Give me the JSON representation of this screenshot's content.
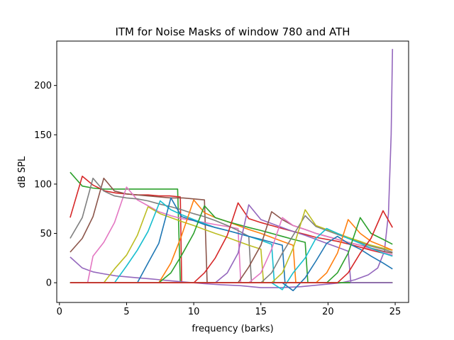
{
  "chart_data": {
    "type": "line",
    "title": "ITM for Noise Masks of window 780 and ATH",
    "xlabel": "frequency (barks)",
    "ylabel": "dB SPL",
    "xlim": [
      -0.2,
      26.0
    ],
    "ylim": [
      -20,
      245
    ],
    "xticks": [
      0,
      5,
      10,
      15,
      20,
      25
    ],
    "yticks": [
      0,
      50,
      100,
      150,
      200
    ],
    "xtick_labels": [
      "0",
      "5",
      "10",
      "15",
      "20",
      "25"
    ],
    "ytick_labels": [
      "0",
      "50",
      "100",
      "150",
      "200"
    ],
    "grid": false,
    "legend": "none",
    "series": [
      {
        "color": "#ff7f0e",
        "x": [
          0.8,
          24.8
        ],
        "y": [
          0,
          0
        ]
      },
      {
        "color": "#2ca02c",
        "x": [
          0.8,
          1.7,
          2.5,
          3.3,
          4.1,
          5.0,
          5.8,
          6.6,
          7.4,
          8.2,
          8.8,
          9.0,
          24.8
        ],
        "y": [
          112,
          98,
          96,
          95,
          95,
          95,
          95,
          95,
          95,
          95,
          95,
          0,
          0
        ]
      },
      {
        "color": "#d62728",
        "x": [
          0.8,
          1.7,
          2.5,
          3.4,
          4.2,
          5.0,
          5.8,
          6.6,
          7.4,
          8.2,
          9.0,
          9.1,
          24.8
        ],
        "y": [
          66,
          108,
          99,
          93,
          91,
          90,
          89,
          89,
          88,
          88,
          87,
          0,
          0
        ]
      },
      {
        "color": "#9467bd",
        "x": [
          0.8,
          1.7,
          2.5,
          3.3,
          4.2,
          5.0,
          5.8,
          6.7,
          7.5,
          8.3,
          9.1,
          10.0,
          10.8,
          12.0,
          13.5,
          15.0,
          16.5,
          18.0,
          19.5,
          21.0,
          22.0,
          23.0,
          23.7,
          24.2,
          24.5,
          24.7,
          24.8
        ],
        "y": [
          26,
          15,
          11,
          9,
          7,
          6,
          5,
          4,
          3,
          2,
          1,
          0,
          -1,
          -2,
          -3,
          -5,
          -5,
          -4,
          -2,
          0,
          3,
          8,
          15,
          32,
          70,
          150,
          237
        ]
      },
      {
        "color": "#8c564b",
        "x": [
          0.8,
          1.7,
          2.5,
          3.3,
          4.1,
          5.0,
          5.8,
          6.6,
          7.4,
          8.3,
          9.2,
          10.0,
          10.8,
          11.0,
          24.8
        ],
        "y": [
          31,
          45,
          67,
          106,
          93,
          90,
          89,
          88,
          87,
          86,
          86,
          85,
          84,
          0,
          0
        ]
      },
      {
        "color": "#e377c2",
        "x": [
          0.8,
          1.5,
          2.1,
          2.5,
          3.3,
          4.1,
          5.0,
          5.8,
          6.6,
          7.4,
          8.3,
          9.1,
          10.0,
          10.8,
          11.6,
          12.5,
          13.3,
          13.5,
          24.8
        ],
        "y": [
          0,
          0,
          0,
          27,
          41,
          61,
          97,
          84,
          78,
          72,
          68,
          65,
          63,
          61,
          59,
          57,
          55,
          0,
          0
        ]
      },
      {
        "color": "#7f7f7f",
        "x": [
          0.8,
          1.7,
          2.5,
          3.3,
          4.1,
          5.0,
          5.8,
          6.6,
          7.4,
          8.3,
          9.1,
          10.0,
          10.8,
          11.6,
          12.5,
          13.3,
          14.1,
          14.3,
          24.8
        ],
        "y": [
          45,
          66,
          106,
          93,
          88,
          86,
          85,
          83,
          80,
          77,
          74,
          70,
          67,
          63,
          58,
          53,
          47,
          0,
          0
        ]
      },
      {
        "color": "#bcbd22",
        "x": [
          0.8,
          2.5,
          3.3,
          4.1,
          5.0,
          5.8,
          6.6,
          7.5,
          8.3,
          9.1,
          10.0,
          10.8,
          11.6,
          12.5,
          13.3,
          14.1,
          15.0,
          15.2,
          24.8
        ],
        "y": [
          0,
          0,
          0,
          14,
          28,
          48,
          77,
          70,
          66,
          62,
          58,
          54,
          50,
          46,
          42,
          38,
          34,
          0,
          0
        ]
      },
      {
        "color": "#17becf",
        "x": [
          0.8,
          3.3,
          4.1,
          5.0,
          5.8,
          6.6,
          7.5,
          8.3,
          9.1,
          10.0,
          10.8,
          11.6,
          12.5,
          13.3,
          14.1,
          15.0,
          15.8,
          16.0,
          24.8
        ],
        "y": [
          0,
          0,
          0,
          17,
          33,
          52,
          83,
          74,
          69,
          64,
          60,
          56,
          53,
          50,
          47,
          43,
          39,
          0,
          0
        ]
      },
      {
        "color": "#1f77b4",
        "x": [
          0.8,
          4.1,
          5.0,
          5.8,
          6.6,
          7.4,
          8.3,
          9.1,
          10.0,
          10.8,
          11.6,
          12.5,
          13.3,
          14.1,
          15.0,
          15.8,
          16.6,
          16.8,
          24.8
        ],
        "y": [
          0,
          0,
          0,
          0,
          20,
          40,
          86,
          67,
          63,
          59,
          56,
          53,
          50,
          47,
          44,
          41,
          38,
          0,
          0
        ]
      },
      {
        "color": "#ff7f0e",
        "x": [
          0.8,
          6.6,
          7.4,
          8.3,
          9.1,
          10.0,
          10.8,
          11.6,
          12.5,
          13.3,
          14.1,
          15.0,
          15.8,
          16.6,
          17.4,
          17.6,
          24.8
        ],
        "y": [
          0,
          0,
          0,
          20,
          48,
          84,
          71,
          66,
          62,
          58,
          54,
          50,
          46,
          42,
          38,
          0,
          0
        ]
      },
      {
        "color": "#2ca02c",
        "x": [
          0.8,
          7.4,
          8.3,
          9.1,
          10.0,
          10.8,
          11.6,
          12.5,
          13.3,
          14.1,
          15.0,
          15.8,
          16.6,
          17.4,
          18.3,
          18.5,
          24.8
        ],
        "y": [
          0,
          0,
          10,
          28,
          50,
          78,
          66,
          62,
          59,
          56,
          53,
          50,
          47,
          44,
          41,
          0,
          0
        ]
      },
      {
        "color": "#d62728",
        "x": [
          0.8,
          8.3,
          9.1,
          10.0,
          10.8,
          11.6,
          12.5,
          13.3,
          14.1,
          15.0,
          15.8,
          16.6,
          17.4,
          18.3,
          19.1,
          19.9,
          20.7,
          21.6,
          22.4,
          23.2,
          24.1,
          24.8
        ],
        "y": [
          0,
          0,
          0,
          0,
          10,
          25,
          48,
          81,
          65,
          61,
          58,
          55,
          52,
          49,
          46,
          44,
          42,
          39,
          36,
          33,
          30,
          28
        ]
      },
      {
        "color": "#9467bd",
        "x": [
          0.8,
          8.3,
          9.1,
          10.0,
          10.8,
          11.6,
          12.5,
          13.3,
          14.1,
          15.0,
          15.8,
          16.6,
          17.4,
          18.3,
          19.1,
          19.9,
          20.7,
          21.5,
          21.7,
          24.8
        ],
        "y": [
          0,
          0,
          0,
          0,
          0,
          0,
          10,
          30,
          79,
          64,
          60,
          56,
          52,
          48,
          44,
          40,
          36,
          32,
          0,
          0
        ]
      },
      {
        "color": "#8c564b",
        "x": [
          0.8,
          12.5,
          13.3,
          14.1,
          15.0,
          15.8,
          16.6,
          17.4,
          18.3,
          19.1,
          19.9,
          20.7,
          21.5,
          22.4,
          23.2,
          24.1,
          24.8
        ],
        "y": [
          0,
          0,
          0,
          16,
          38,
          72,
          64,
          58,
          54,
          50,
          47,
          44,
          41,
          38,
          35,
          32,
          30
        ]
      },
      {
        "color": "#e377c2",
        "x": [
          0.8,
          13.3,
          14.1,
          15.0,
          15.8,
          16.6,
          17.4,
          18.3,
          19.1,
          19.9,
          20.7,
          21.5,
          22.4,
          23.2,
          24.1,
          24.8
        ],
        "y": [
          0,
          0,
          0,
          10,
          34,
          66,
          58,
          54,
          50,
          47,
          44,
          41,
          38,
          34,
          31,
          28
        ]
      },
      {
        "color": "#7f7f7f",
        "x": [
          0.8,
          14.1,
          15.0,
          15.8,
          16.6,
          17.4,
          18.3,
          19.1,
          19.9,
          20.7,
          21.5,
          22.4,
          23.2,
          24.1,
          24.8
        ],
        "y": [
          0,
          0,
          0,
          10,
          30,
          48,
          68,
          57,
          53,
          49,
          45,
          41,
          37,
          34,
          31
        ]
      },
      {
        "color": "#bcbd22",
        "x": [
          0.8,
          15.0,
          15.8,
          16.6,
          17.4,
          18.3,
          19.1,
          19.9,
          20.7,
          21.5,
          22.4,
          23.2,
          24.1,
          24.8
        ],
        "y": [
          0,
          0,
          0,
          10,
          35,
          74,
          58,
          54,
          50,
          46,
          42,
          38,
          35,
          33
        ]
      },
      {
        "color": "#17becf",
        "x": [
          0.8,
          15.8,
          16.6,
          17.4,
          18.3,
          19.1,
          19.9,
          20.7,
          21.5,
          22.4,
          23.2,
          24.1,
          24.8
        ],
        "y": [
          0,
          0,
          -7,
          10,
          25,
          45,
          55,
          50,
          45,
          40,
          35,
          30,
          27
        ]
      },
      {
        "color": "#1f77b4",
        "x": [
          0.8,
          16.6,
          17.4,
          18.3,
          19.1,
          19.9,
          20.7,
          21.5,
          22.4,
          23.2,
          24.1,
          24.8
        ],
        "y": [
          0,
          0,
          -8,
          5,
          22,
          40,
          47,
          40,
          34,
          27,
          20,
          14
        ]
      },
      {
        "color": "#ff7f0e",
        "x": [
          0.8,
          18.3,
          19.1,
          19.9,
          20.7,
          21.5,
          22.4,
          23.2,
          24.1,
          24.8
        ],
        "y": [
          0,
          0,
          0,
          10,
          30,
          64,
          50,
          42,
          37,
          33
        ]
      },
      {
        "color": "#2ca02c",
        "x": [
          0.8,
          19.1,
          19.9,
          20.7,
          21.5,
          22.4,
          23.2,
          24.1,
          24.8
        ],
        "y": [
          0,
          0,
          0,
          10,
          30,
          66,
          50,
          44,
          39
        ]
      },
      {
        "color": "#d62728",
        "x": [
          0.8,
          20.7,
          21.5,
          22.4,
          23.2,
          24.1,
          24.8
        ],
        "y": [
          0,
          0,
          10,
          30,
          45,
          73,
          56
        ]
      }
    ]
  }
}
